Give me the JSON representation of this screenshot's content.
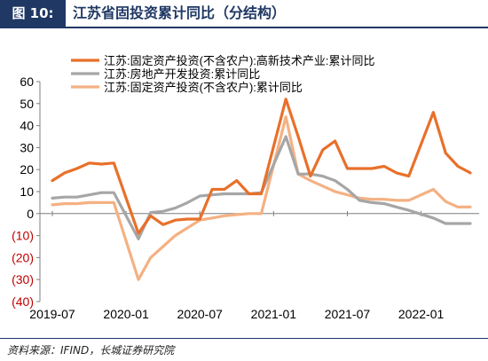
{
  "header": {
    "label": "图 10:",
    "title": "江苏省固投资累计同比（分结构）"
  },
  "footer": {
    "source": "资料来源：IFIND，长城证券研究院"
  },
  "chart_data": {
    "type": "line",
    "title": "图 10: 江苏省固投资累计同比（分结构）",
    "xlabel": "",
    "ylabel": "",
    "ylim": [
      -40,
      60
    ],
    "yticks": [
      -40,
      -30,
      -20,
      -10,
      0,
      10,
      20,
      30,
      40,
      50,
      60
    ],
    "ytick_labels": [
      "(40)",
      "(30)",
      "(20)",
      "(10)",
      "0",
      "10",
      "20",
      "30",
      "40",
      "50",
      "60"
    ],
    "negative_tick_color": "#c00000",
    "x": [
      "2019-07",
      "2019-08",
      "2019-09",
      "2019-10",
      "2019-11",
      "2019-12",
      "2020-02",
      "2020-03",
      "2020-04",
      "2020-05",
      "2020-06",
      "2020-07",
      "2020-08",
      "2020-09",
      "2020-10",
      "2020-11",
      "2020-12",
      "2021-02",
      "2021-03",
      "2021-04",
      "2021-05",
      "2021-06",
      "2021-07",
      "2021-08",
      "2021-09",
      "2021-10",
      "2021-11",
      "2021-12",
      "2022-02",
      "2022-03",
      "2022-04",
      "2022-05"
    ],
    "xticks": [
      "2019-07",
      "2020-01",
      "2020-07",
      "2021-01",
      "2021-07",
      "2022-01"
    ],
    "grid": false,
    "legend_position": "top-left",
    "series": [
      {
        "name": "江苏:固定资产投资(不含农户):高新技术产业:累计同比",
        "color": "#e8702a",
        "values": [
          15,
          18.5,
          20.5,
          23,
          22.5,
          23,
          -9,
          -1,
          -5,
          -3,
          -2.5,
          -2.5,
          11,
          11,
          15,
          9,
          9,
          52,
          35,
          17,
          29,
          33,
          20.5,
          20.5,
          20.5,
          21.5,
          18.5,
          17,
          46,
          27.5,
          21.5,
          18.5
        ]
      },
      {
        "name": "江苏:房地产开发投资:累计同比",
        "color": "#a6a6a6",
        "values": [
          7,
          7.5,
          7.5,
          8.5,
          9.5,
          9.5,
          -11.5,
          0.5,
          1,
          2.5,
          5,
          8,
          8.5,
          9,
          9,
          9,
          9.5,
          35,
          18,
          18,
          17,
          15,
          11,
          6,
          5,
          4.5,
          3,
          1.5,
          -2,
          -4.5,
          -4.5,
          -4.5
        ]
      },
      {
        "name": "江苏:固定资产投资(不含农户):累计同比",
        "color": "#f4b183",
        "values": [
          4,
          4.5,
          4.5,
          5,
          5,
          5,
          -30,
          -20,
          -15,
          -10,
          -6.5,
          -3,
          -2,
          -1,
          -0.5,
          0,
          0,
          44,
          18,
          15,
          12.5,
          10,
          8.5,
          7,
          6.5,
          6.5,
          6,
          6,
          11,
          5.5,
          3,
          3
        ]
      }
    ]
  }
}
